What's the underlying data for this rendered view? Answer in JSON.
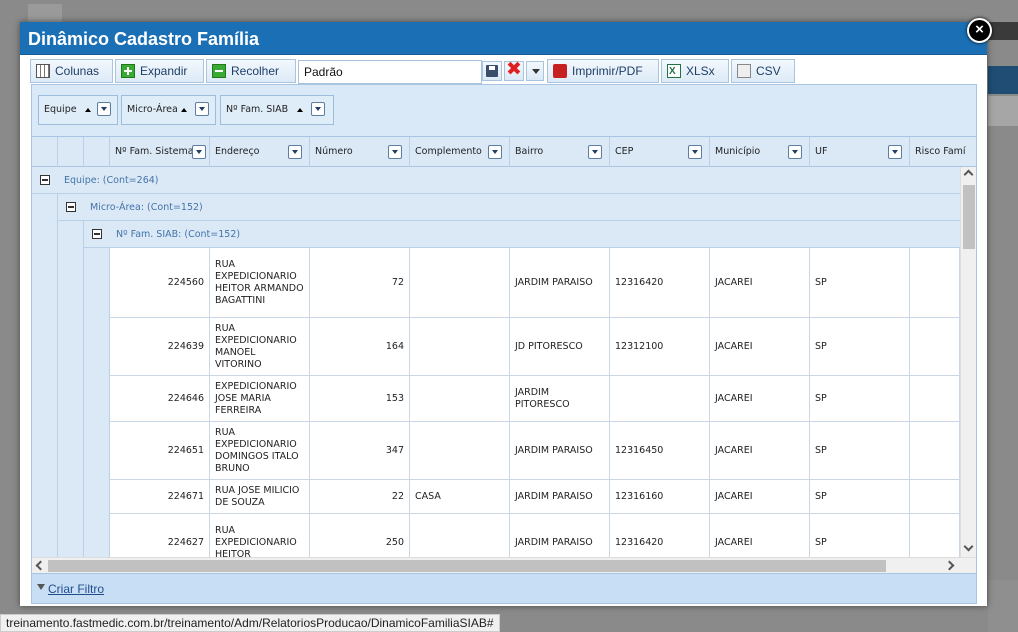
{
  "modal": {
    "title": "Dinâmico Cadastro Família",
    "close_label": "×"
  },
  "toolbar": {
    "colunas": "Colunas",
    "expandir": "Expandir",
    "recolher": "Recolher",
    "view_value": "Padrão",
    "imprimir": "Imprimir/PDF",
    "xlsx": "XLSx",
    "csv": "CSV"
  },
  "group_panel": {
    "chips": [
      {
        "label": "Equipe"
      },
      {
        "label": "Micro-Área"
      },
      {
        "label": "Nº Fam. SIAB"
      }
    ]
  },
  "columns": [
    "Nº Fam. Sistema",
    "Endereço",
    "Número",
    "Complemento",
    "Bairro",
    "CEP",
    "Município",
    "UF",
    "Risco Famí"
  ],
  "groups": {
    "equipe": "Equipe: (Cont=264)",
    "micro_area": "Micro-Área: (Cont=152)",
    "fam_siab": "Nº Fam. SIAB: (Cont=152)"
  },
  "rows": [
    {
      "fam": "224560",
      "endereco": "RUA EXPEDICIONARIO HEITOR ARMANDO BAGATTINI",
      "numero": "72",
      "complemento": "",
      "bairro": "JARDIM PARAISO",
      "cep": "12316420",
      "municipio": "JACAREI",
      "uf": "SP"
    },
    {
      "fam": "224639",
      "endereco": "RUA EXPEDICIONARIO MANOEL VITORINO",
      "numero": "164",
      "complemento": "",
      "bairro": "JD PITORESCO",
      "cep": "12312100",
      "municipio": "JACAREI",
      "uf": "SP"
    },
    {
      "fam": "224646",
      "endereco": "EXPEDICIONARIO JOSE MARIA FERREIRA",
      "numero": "153",
      "complemento": "",
      "bairro": "JARDIM PITORESCO",
      "cep": "",
      "municipio": "JACAREI",
      "uf": "SP"
    },
    {
      "fam": "224651",
      "endereco": "RUA EXPEDICIONARIO DOMINGOS ITALO BRUNO",
      "numero": "347",
      "complemento": "",
      "bairro": "JARDIM PARAISO",
      "cep": "12316450",
      "municipio": "JACAREI",
      "uf": "SP"
    },
    {
      "fam": "224671",
      "endereco": "RUA JOSE MILICIO DE SOUZA",
      "numero": "22",
      "complemento": "CASA",
      "bairro": "JARDIM PARAISO",
      "cep": "12316160",
      "municipio": "JACAREI",
      "uf": "SP"
    },
    {
      "fam": "224627",
      "endereco": "RUA EXPEDICIONARIO HEITOR",
      "numero": "250",
      "complemento": "",
      "bairro": "JARDIM PARAISO",
      "cep": "12316420",
      "municipio": "JACAREI",
      "uf": "SP"
    }
  ],
  "footer": {
    "filter_label": "Criar Filtro"
  },
  "statusbar": {
    "url": "treinamento.fastmedic.com.br/treinamento/Adm/RelatoriosProducao/DinamicoFamiliaSIAB#"
  }
}
